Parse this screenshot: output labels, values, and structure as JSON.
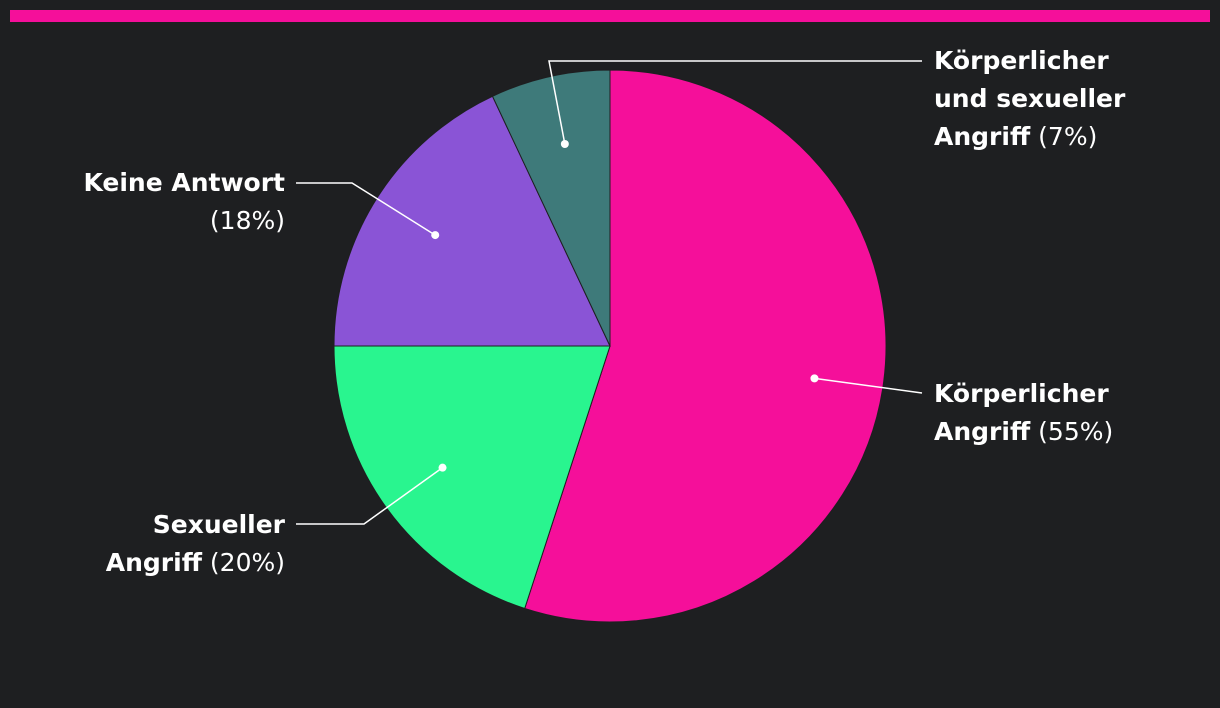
{
  "accent_color": "#f50f9a",
  "chart_data": {
    "type": "pie",
    "title": "",
    "slices": [
      {
        "lines": [
          "Körperlicher",
          "Angriff"
        ],
        "pct": "(55%)",
        "value": 55,
        "color": "#f50f9a"
      },
      {
        "lines": [
          "Sexueller",
          "Angriff"
        ],
        "pct": "(20%)",
        "value": 20,
        "color": "#29f58f"
      },
      {
        "lines": [
          "Keine Antwort"
        ],
        "pct": "(18%)",
        "value": 18,
        "color": "#8a54d6"
      },
      {
        "lines": [
          "Körperlicher",
          "und sexueller",
          "Angriff"
        ],
        "pct": "(7%)",
        "value": 7,
        "color": "#3e7a7a"
      }
    ],
    "legend": "none",
    "grid": false
  }
}
